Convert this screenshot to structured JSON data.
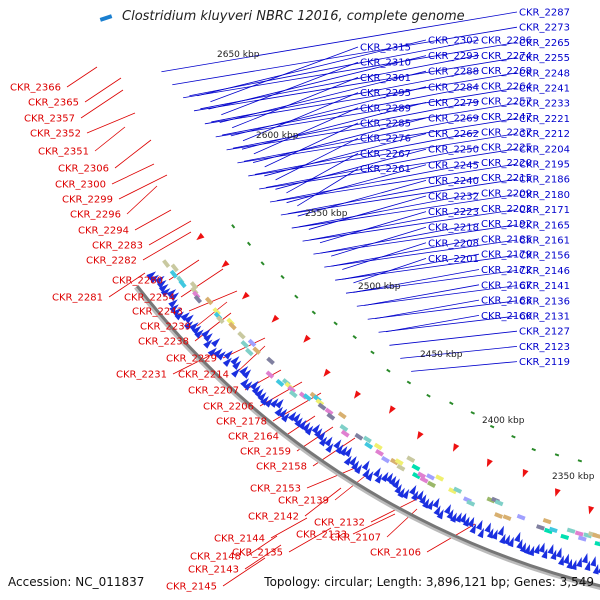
{
  "header": {
    "title": "Clostridium kluyveri NBRC 12016, complete genome"
  },
  "footer": {
    "accession_label": "Accession:",
    "accession": "NC_011837",
    "topology_label": "Topology:",
    "topology": "circular",
    "length_label": "Length:",
    "length": "3,896,121 bp",
    "genes_label": "Genes:",
    "genes": "3,549"
  },
  "kbp_ticks": [
    "2650 kbp",
    "2600 kbp",
    "2550 kbp",
    "2500 kbp",
    "2450 kbp",
    "2400 kbp",
    "2350 kbp"
  ],
  "colors": {
    "forward_label": "#0000cc",
    "reverse_label": "#dd0000",
    "forward_arrow": "#1a2fe0",
    "reverse_arrow": "#ee1111",
    "backbone": "#777777",
    "rna_tick": "#2a8a2a"
  },
  "blue_labels": [
    "CKR_2287",
    "CKR_2273",
    "CKR_2265",
    "CKR_2255",
    "CKR_2248",
    "CKR_2241",
    "CKR_2233",
    "CKR_2221",
    "CKR_2212",
    "CKR_2204",
    "CKR_2195",
    "CKR_2186",
    "CKR_2180",
    "CKR_2171",
    "CKR_2165",
    "CKR_2161",
    "CKR_2156",
    "CKR_2146",
    "CKR_2141",
    "CKR_2136",
    "CKR_2131",
    "CKR_2127",
    "CKR_2123",
    "CKR_2119",
    "CKR_2286",
    "CKR_2274",
    "CKR_2268",
    "CKR_2264",
    "CKR_2257",
    "CKR_2247",
    "CKR_2237",
    "CKR_2225",
    "CKR_2220",
    "CKR_2215",
    "CKR_2209",
    "CKR_2203",
    "CKR_2192",
    "CKR_2185",
    "CKR_2179",
    "CKR_2172",
    "CKR_2167",
    "CKR_2163",
    "CKR_2160",
    "CKR_2302",
    "CKR_2293",
    "CKR_2288",
    "CKR_2284",
    "CKR_2279",
    "CKR_2269",
    "CKR_2262",
    "CKR_2250",
    "CKR_2245",
    "CKR_2240",
    "CKR_2232",
    "CKR_2223",
    "CKR_2218",
    "CKR_2208",
    "CKR_2201",
    "CKR_2315",
    "CKR_2310",
    "CKR_2301",
    "CKR_2295",
    "CKR_2289",
    "CKR_2285",
    "CKR_2276",
    "CKR_2267",
    "CKR_2261"
  ],
  "red_labels": [
    "CKR_2366",
    "CKR_2365",
    "CKR_2357",
    "CKR_2352",
    "CKR_2351",
    "CKR_2306",
    "CKR_2300",
    "CKR_2299",
    "CKR_2296",
    "CKR_2294",
    "CKR_2283",
    "CKR_2282",
    "CKR_2280",
    "CKR_2281",
    "CKR_2254",
    "CKR_2243",
    "CKR_2239",
    "CKR_2238",
    "CKR_2229",
    "CKR_2231",
    "CKR_2214",
    "CKR_2207",
    "CKR_2206",
    "CKR_2178",
    "CKR_2164",
    "CKR_2159",
    "CKR_2158",
    "CKR_2153",
    "CKR_2139",
    "CKR_2142",
    "CKR_2133",
    "CKR_2132",
    "CKR_2107",
    "CKR_2144",
    "CKR_2135",
    "CKR_2106",
    "CKR_2148",
    "CKR_2143",
    "CKR_2145"
  ]
}
